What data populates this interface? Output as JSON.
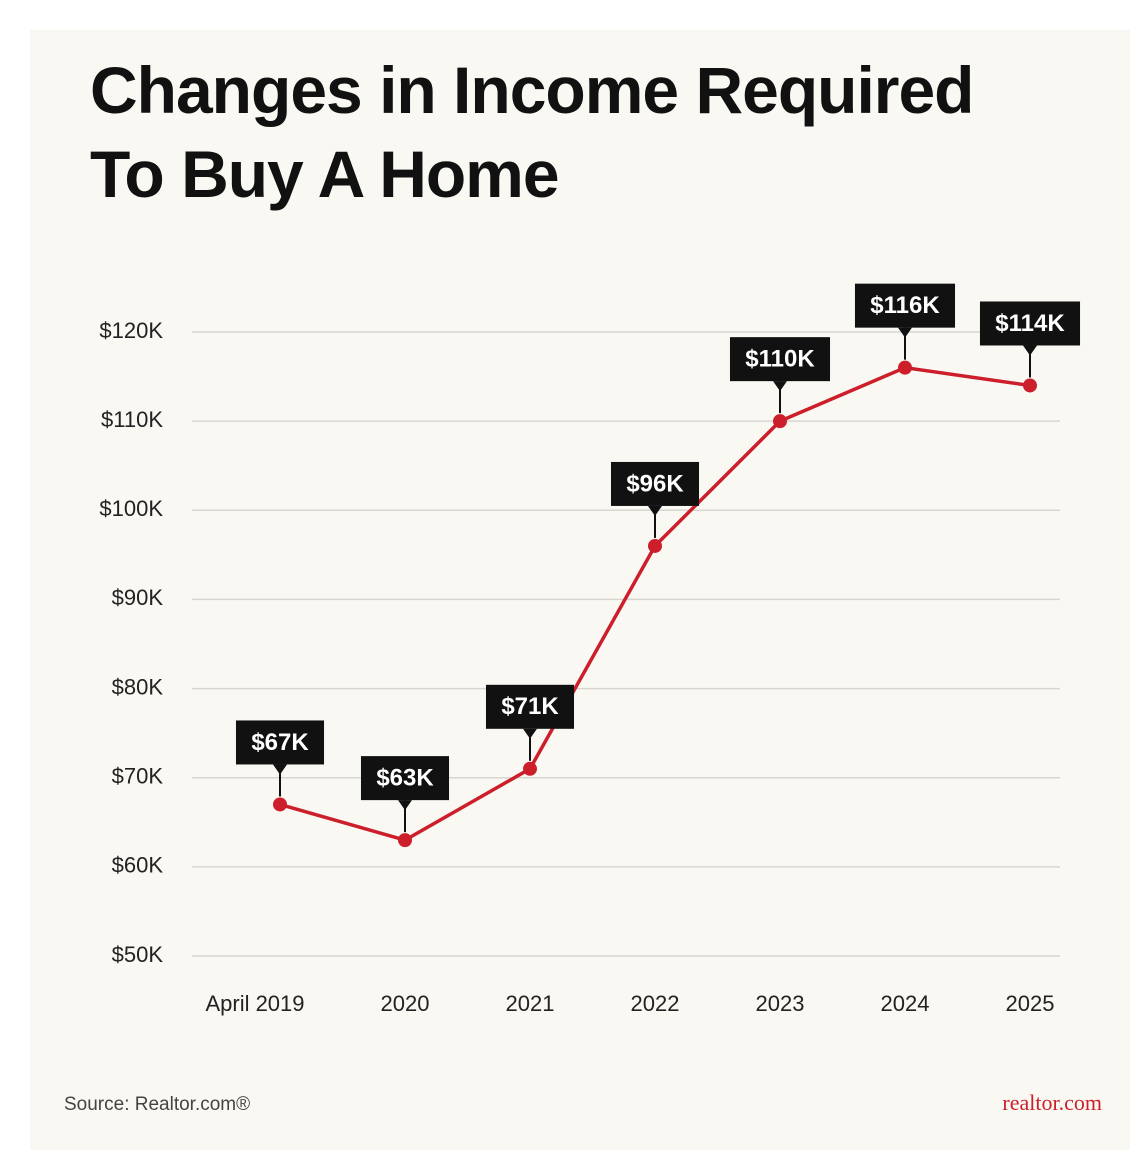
{
  "chart_data": {
    "type": "line",
    "title": "Changes in Income Required To Buy A Home",
    "categories": [
      "April 2019",
      "2020",
      "2021",
      "2022",
      "2023",
      "2024",
      "2025"
    ],
    "values": [
      67000,
      63000,
      71000,
      96000,
      110000,
      116000,
      114000
    ],
    "value_labels": [
      "$67K",
      "$63K",
      "$71K",
      "$96K",
      "$110K",
      "$116K",
      "$114K"
    ],
    "color": "#cc1f2b",
    "ylim": [
      50000,
      120000
    ],
    "yticks": [
      {
        "value": 50000,
        "label": "$50K"
      },
      {
        "value": 60000,
        "label": "$60K"
      },
      {
        "value": 70000,
        "label": "$70K"
      },
      {
        "value": 80000,
        "label": "$80K"
      },
      {
        "value": 90000,
        "label": "$90K"
      },
      {
        "value": 100000,
        "label": "$100K"
      },
      {
        "value": 110000,
        "label": "$110K"
      },
      {
        "value": 120000,
        "label": "$120K"
      }
    ],
    "grid": true,
    "source": "Source: Realtor.com®",
    "logo": "realtor.com"
  }
}
